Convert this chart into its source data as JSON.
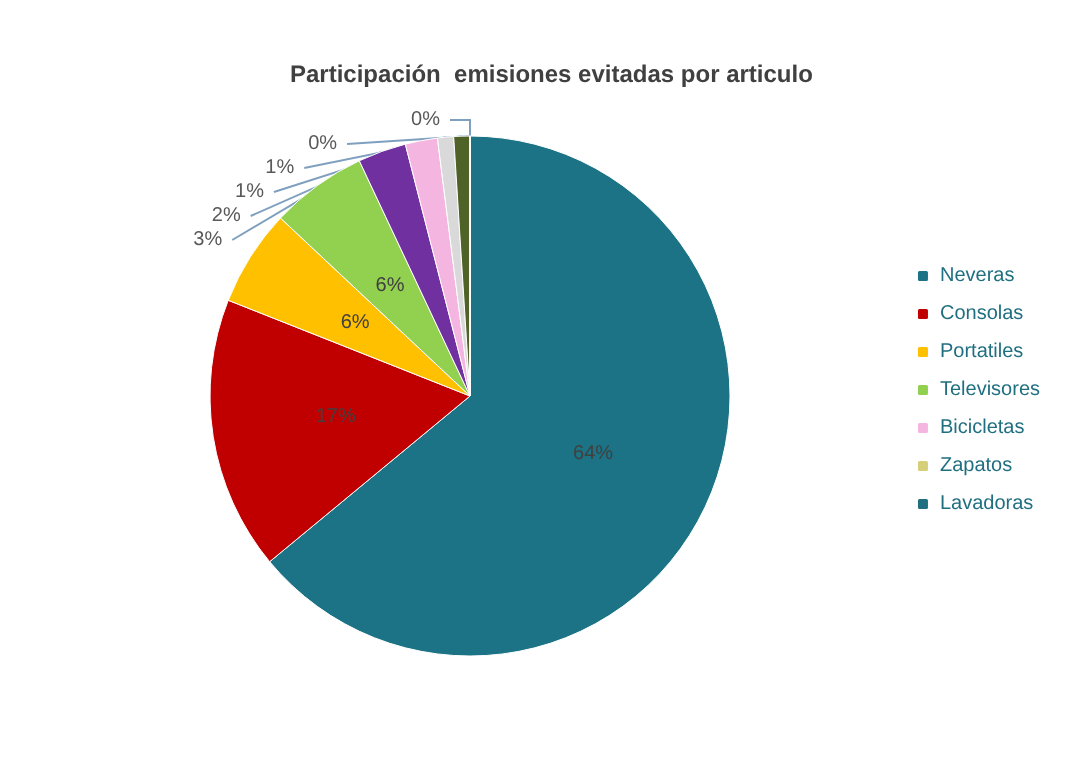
{
  "chart_data": {
    "type": "pie",
    "title": "Participación  emisiones evitadas por articulo",
    "categories": [
      "Neveras",
      "Consolas",
      "Portatiles",
      "Televisores",
      null,
      "Bicicletas",
      null,
      null,
      "Zapatos",
      "Lavadoras"
    ],
    "values": [
      64,
      17,
      6,
      6,
      3,
      2,
      1,
      1,
      0,
      0
    ],
    "value_labels": [
      "64%",
      "17%",
      "6%",
      "6%",
      "3%",
      "2%",
      "1%",
      "1%",
      "0%",
      "0%"
    ],
    "colors": [
      "#1b7385",
      "#c00000",
      "#ffc000",
      "#92d050",
      "#7030a0",
      "#f4b6e0",
      "#d9d9d9",
      "#4f6228",
      "#d6cf7a",
      "#1f6f80"
    ],
    "legend": "right"
  }
}
